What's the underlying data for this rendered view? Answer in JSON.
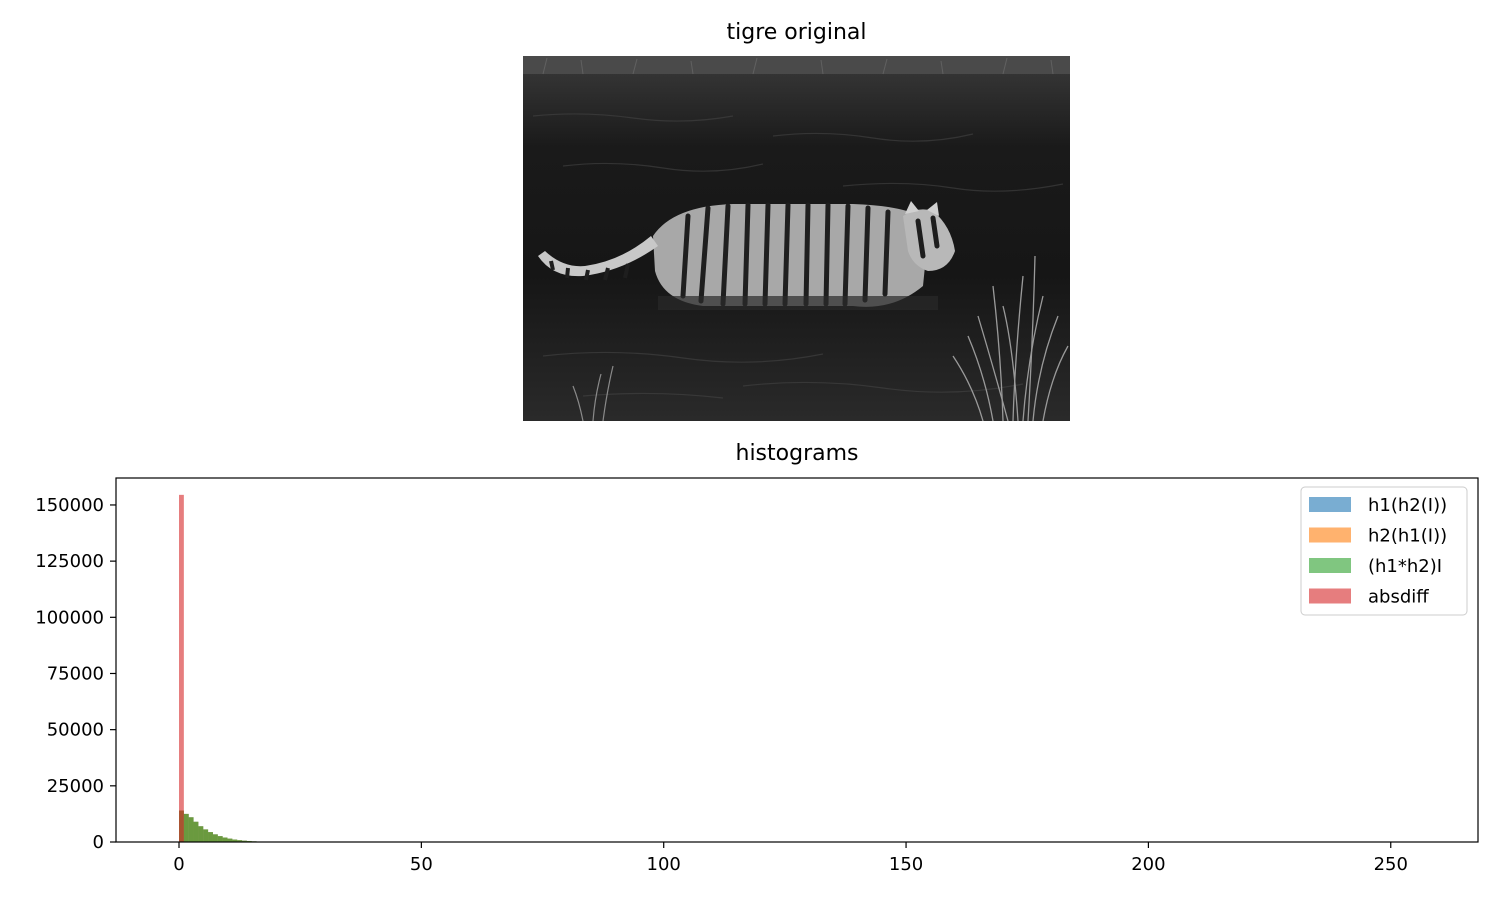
{
  "image_panel": {
    "title": "tigre original",
    "content": "grayscale photograph of a tiger wading in water"
  },
  "chart_data": {
    "type": "bar",
    "title": "histograms",
    "xlabel": "",
    "ylabel": "",
    "xlim": [
      -13,
      268
    ],
    "ylim": [
      0,
      162000
    ],
    "x_ticks": [
      0,
      50,
      100,
      150,
      200,
      250
    ],
    "y_ticks": [
      0,
      25000,
      50000,
      75000,
      100000,
      125000,
      150000
    ],
    "grid": false,
    "legend_position": "top-right",
    "bin_width": 1,
    "series": [
      {
        "name": "h1(h2(I))",
        "color": "#1f77b4",
        "alpha": 0.6,
        "x": [
          0,
          1,
          2,
          3,
          4,
          5,
          6,
          7,
          8,
          9,
          10,
          11,
          12,
          13,
          14,
          15
        ],
        "values": [
          14000,
          12500,
          11000,
          9000,
          7000,
          5600,
          4400,
          3400,
          2600,
          2000,
          1500,
          1100,
          800,
          600,
          450,
          300
        ]
      },
      {
        "name": "h2(h1(I))",
        "color": "#ff7f0e",
        "alpha": 0.6,
        "x": [
          0,
          1,
          2,
          3,
          4,
          5,
          6,
          7,
          8,
          9,
          10,
          11,
          12,
          13,
          14,
          15
        ],
        "values": [
          14000,
          12500,
          11000,
          9000,
          7000,
          5600,
          4400,
          3400,
          2600,
          2000,
          1500,
          1100,
          800,
          600,
          450,
          300
        ]
      },
      {
        "name": "(h1*h2)I",
        "color": "#2ca02c",
        "alpha": 0.6,
        "x": [
          0,
          1,
          2,
          3,
          4,
          5,
          6,
          7,
          8,
          9,
          10,
          11,
          12,
          13,
          14,
          15
        ],
        "values": [
          14000,
          12500,
          11000,
          9000,
          7000,
          5600,
          4400,
          3400,
          2600,
          2000,
          1500,
          1100,
          800,
          600,
          450,
          300
        ]
      },
      {
        "name": "absdiff",
        "color": "#d62728",
        "alpha": 0.6,
        "x": [
          0,
          1
        ],
        "values": [
          154500,
          0
        ]
      }
    ]
  }
}
